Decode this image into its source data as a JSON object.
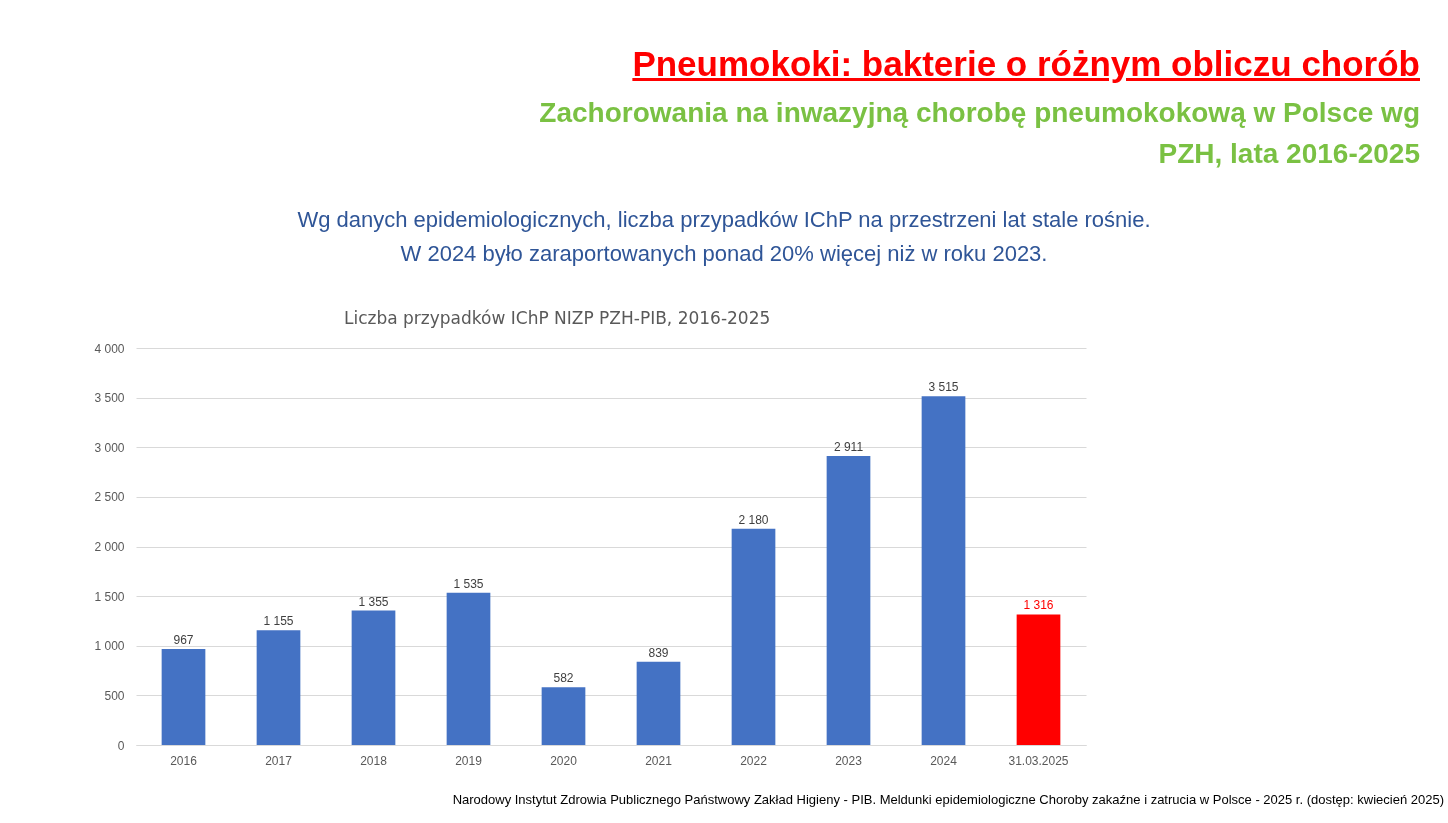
{
  "chart_data": {
    "type": "bar",
    "title": "Pneumokoki: bakterie o różnym obliczu chorób",
    "subtitle": "Zachorowania na inwazyjną chorobę pneumokokową w Polsce wg PZH, lata 2016-2025",
    "annotations": [
      "Wg danych epidemiologicznych, liczba przypadków IChP na przestrzeni lat stale rośnie.",
      "W 2024 było zaraportowanych ponad 20% więcej niż w roku 2023.",
      "Liczba przypadków IChP NIZP PZH-PIB, 2016-2025",
      "Narodowy Instytut Zdrowia Publicznego Państwowy Zakład Higieny - PIB.  Meldunki epidemiologiczne Choroby zakaźne i zatrucia w Polsce - 2025 r. (dostęp: kwiecień 2025)"
    ],
    "categories": [
      "2016",
      "2017",
      "2018",
      "2019",
      "2020",
      "2021",
      "2022",
      "2023",
      "2024",
      "31.03.2025"
    ],
    "values": [
      967,
      1155,
      1355,
      1535,
      582,
      839,
      2180,
      2911,
      3515,
      1316
    ],
    "value_labels": [
      "967",
      "1 155",
      "1 355",
      "1 535",
      "582",
      "839",
      "2 180",
      "2 911",
      "3 515",
      "1 316"
    ],
    "colors": [
      "#4472c4",
      "#4472c4",
      "#4472c4",
      "#4472c4",
      "#4472c4",
      "#4472c4",
      "#4472c4",
      "#4472c4",
      "#4472c4",
      "#ff0000"
    ],
    "ylim": [
      0,
      4000
    ],
    "yticks": [
      0,
      {
        "value": 500,
        "label": "500"
      },
      {
        "value": 1000,
        "label": "1 000"
      },
      {
        "value": 1500,
        "label": "1 500"
      },
      {
        "value": 2000,
        "label": "2 000"
      },
      {
        "value": 2500,
        "label": "2 500"
      },
      {
        "value": 3000,
        "label": "3 000"
      },
      {
        "value": 3500,
        "label": "3 500"
      },
      {
        "value": 4000,
        "label": "4 000"
      }
    ],
    "grid": "y"
  }
}
